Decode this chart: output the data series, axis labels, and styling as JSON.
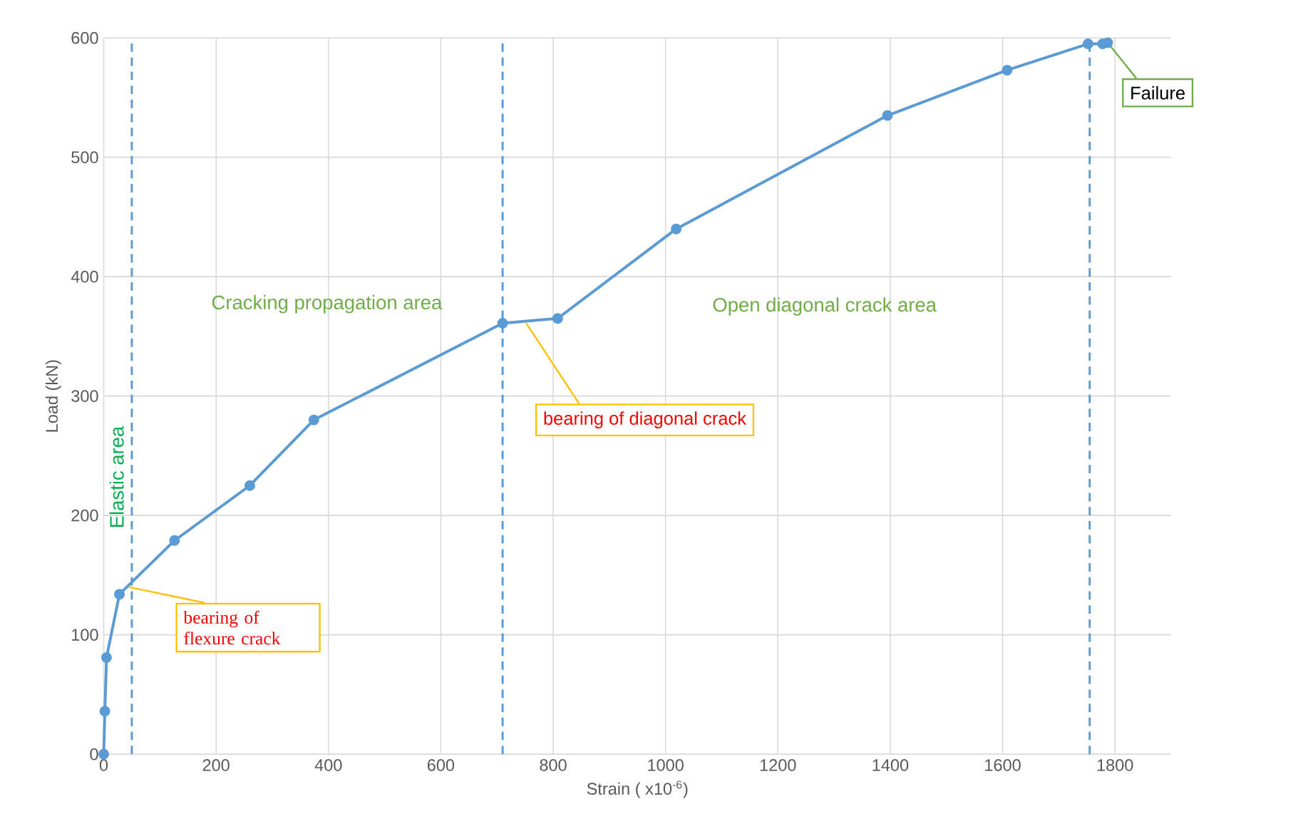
{
  "chart_data": {
    "type": "line",
    "xlabel": "Strain ( x10$^{-6}$)",
    "ylabel": "Load (kN)",
    "series": [
      {
        "color": "#5b9bd5",
        "x": [
          0,
          2,
          5,
          28,
          126,
          260,
          374,
          710,
          808,
          1019,
          1395,
          1608,
          1752,
          1778,
          1787
        ],
        "values": [
          0,
          36,
          81,
          134,
          179,
          225,
          280,
          361,
          365,
          440,
          535,
          573,
          595,
          595,
          596
        ]
      }
    ],
    "xlim": [
      0,
      1900
    ],
    "ylim": [
      0,
      600
    ],
    "xticks": [
      0,
      200,
      400,
      600,
      800,
      1000,
      1200,
      1400,
      1600,
      1800
    ],
    "yticks": [
      0,
      100,
      200,
      300,
      400,
      500,
      600
    ],
    "grid": true,
    "marker": "circle",
    "line_style": "solid",
    "ref_lines": [
      {
        "axis": "x",
        "value": 50,
        "color": "#5b9bd5",
        "line_style": "dashed"
      },
      {
        "axis": "x",
        "value": 710,
        "color": "#5b9bd5",
        "line_style": "dashed"
      },
      {
        "axis": "x",
        "value": 1755,
        "color": "#5b9bd5",
        "line_style": "dashed"
      }
    ],
    "annotations": [
      "Elastic area",
      "Cracking  propagation area",
      "Open diagonal crack area",
      {
        "text": "bearing of flexure crack",
        "x": 45,
        "y": 140
      },
      {
        "text": "bearing of diagonal crack",
        "x": 752,
        "y": 361
      },
      {
        "text": "Failure",
        "x": 1787,
        "y": 596
      }
    ]
  }
}
